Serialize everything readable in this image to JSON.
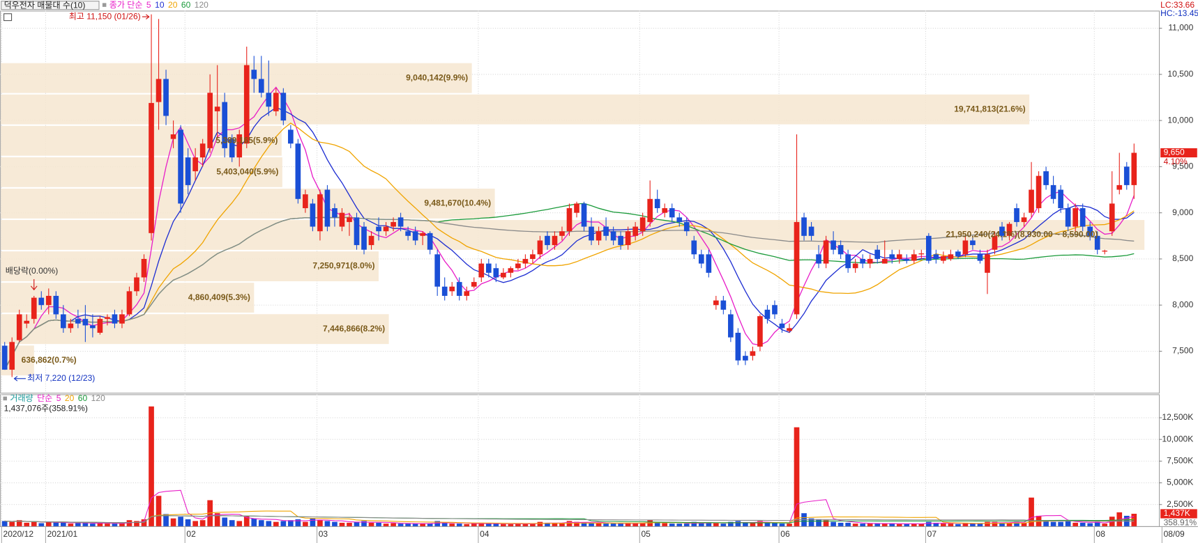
{
  "chart_data": [
    {
      "type": "candlestick",
      "title": "덕우전자 매물대 수(10)",
      "ma_title": "종가 단순",
      "ma": [
        {
          "period": 5,
          "color": "#e81ec8"
        },
        {
          "period": 10,
          "color": "#1e2ed2"
        },
        {
          "period": 20,
          "color": "#f0a400"
        },
        {
          "period": 60,
          "color": "#1a9a3a"
        },
        {
          "period": 120,
          "color": "#8a8a8a"
        }
      ],
      "categories": [
        "2020/12",
        null,
        null,
        null,
        null,
        null,
        "2021/01",
        null,
        null,
        null,
        null,
        null,
        null,
        null,
        null,
        null,
        null,
        null,
        null,
        null,
        null,
        null,
        null,
        null,
        null,
        "02",
        null,
        null,
        null,
        null,
        null,
        null,
        null,
        null,
        null,
        null,
        null,
        null,
        null,
        null,
        null,
        null,
        null,
        "03",
        null,
        null,
        null,
        null,
        null,
        null,
        null,
        null,
        null,
        null,
        null,
        null,
        null,
        null,
        null,
        null,
        null,
        null,
        null,
        null,
        null,
        "04",
        null,
        null,
        null,
        null,
        null,
        null,
        null,
        null,
        null,
        null,
        null,
        null,
        null,
        null,
        null,
        null,
        null,
        null,
        null,
        null,
        null,
        "05",
        null,
        null,
        null,
        null,
        null,
        null,
        null,
        null,
        null,
        null,
        null,
        null,
        null,
        null,
        null,
        null,
        null,
        null,
        "06",
        null,
        null,
        null,
        null,
        null,
        null,
        null,
        null,
        null,
        null,
        null,
        null,
        null,
        null,
        null,
        null,
        null,
        null,
        null,
        "07",
        null,
        null,
        null,
        null,
        null,
        null,
        null,
        null,
        null,
        null,
        null,
        null,
        null,
        null,
        null,
        null,
        null,
        null,
        null,
        null,
        null,
        null,
        "08",
        null,
        null,
        null,
        null,
        null
      ],
      "open": [
        7560,
        7300,
        7620,
        7800,
        7850,
        8080,
        8000,
        8100,
        7900,
        7750,
        7850,
        7850,
        7780,
        7700,
        7850,
        7900,
        7800,
        7900,
        8150,
        8300,
        8780,
        10200,
        10450,
        9800,
        9900,
        9600,
        9450,
        9600,
        9700,
        10100,
        10200,
        9800,
        9600,
        9750,
        10550,
        10450,
        10300,
        10100,
        10300,
        9900,
        9750,
        9050,
        9100,
        8800,
        9250,
        9050,
        8850,
        8900,
        8950,
        8850,
        8650,
        8850,
        8800,
        8850,
        8950,
        8800,
        8800,
        8750,
        8780,
        8550,
        8200,
        8150,
        8250,
        8100,
        8200,
        8300,
        8450,
        8400,
        8300,
        8350,
        8400,
        8450,
        8500,
        8550,
        8750,
        8650,
        8750,
        8800,
        9000,
        9100,
        8850,
        8700,
        8850,
        8800,
        8750,
        8650,
        8750,
        8800,
        8900,
        9150,
        9000,
        9050,
        8950,
        8900,
        8700,
        8550,
        8550,
        8000,
        8050,
        7900,
        7700,
        7450,
        7450,
        7550,
        7950,
        8000,
        7800,
        7720,
        7900,
        8950,
        8850,
        8550,
        8450,
        8700,
        8650,
        8550,
        8400,
        8500,
        8450,
        8600,
        8450,
        8550,
        8500,
        8500,
        8480,
        8550,
        8750,
        8550,
        8480,
        8500,
        8580,
        8550,
        8700,
        8550,
        8350,
        8600,
        8850,
        8750,
        9050,
        8900,
        9000,
        9050,
        9450,
        9300,
        9250,
        9050,
        8850,
        9050,
        8850,
        8750,
        8580,
        8800,
        9250,
        9500,
        9300
      ],
      "high": [
        7600,
        7650,
        7950,
        7900,
        8100,
        8150,
        8180,
        8150,
        8000,
        7850,
        7950,
        8000,
        7900,
        7880,
        7900,
        7950,
        7950,
        8200,
        8350,
        8550,
        11150,
        11100,
        10550,
        10000,
        9950,
        9700,
        9700,
        9800,
        10500,
        10600,
        10300,
        9850,
        9900,
        10800,
        10700,
        10700,
        10650,
        10350,
        10350,
        9950,
        9800,
        9250,
        9150,
        9250,
        9300,
        9100,
        9050,
        9000,
        9000,
        8900,
        8800,
        8950,
        8900,
        8950,
        9000,
        8850,
        8850,
        8800,
        8800,
        8600,
        8300,
        8250,
        8300,
        8200,
        8300,
        8500,
        8500,
        8450,
        8400,
        8420,
        8500,
        8550,
        8600,
        8750,
        8800,
        8800,
        8850,
        9100,
        9120,
        9120,
        8950,
        8850,
        8950,
        8850,
        8800,
        8850,
        8900,
        9000,
        9350,
        9250,
        9100,
        9100,
        9000,
        8950,
        8750,
        8600,
        8600,
        8100,
        8100,
        7950,
        7750,
        7500,
        7550,
        7900,
        8000,
        8050,
        7850,
        7800,
        9850,
        9000,
        8900,
        8650,
        8750,
        8800,
        8700,
        8600,
        8500,
        8550,
        8550,
        8650,
        8700,
        8600,
        8600,
        8550,
        8600,
        8600,
        8780,
        8600,
        8580,
        8600,
        8600,
        8750,
        8750,
        8600,
        8600,
        8800,
        8900,
        8900,
        9100,
        9000,
        9550,
        9450,
        9500,
        9400,
        9300,
        9100,
        9100,
        9100,
        8900,
        8800,
        8600,
        9450,
        9650,
        9550,
        9750
      ],
      "low": [
        7300,
        7220,
        7600,
        7750,
        7800,
        7950,
        7900,
        7850,
        7700,
        7700,
        7750,
        7600,
        7650,
        7680,
        7780,
        7750,
        7750,
        7880,
        8100,
        8250,
        8700,
        9900,
        9950,
        9700,
        9000,
        9200,
        9350,
        9500,
        9650,
        9800,
        9600,
        9550,
        9500,
        9700,
        10300,
        10250,
        10050,
        10050,
        9950,
        9700,
        9100,
        9000,
        8800,
        8700,
        8800,
        8850,
        8800,
        8750,
        8600,
        8550,
        8600,
        8700,
        8750,
        8800,
        8800,
        8700,
        8650,
        8650,
        8550,
        8100,
        8050,
        8100,
        8050,
        8050,
        8180,
        8250,
        8300,
        8250,
        8280,
        8300,
        8380,
        8400,
        8450,
        8500,
        8600,
        8600,
        8700,
        8750,
        8950,
        8800,
        8650,
        8650,
        8700,
        8650,
        8600,
        8600,
        8700,
        8750,
        8850,
        9000,
        8950,
        8900,
        8850,
        8750,
        8500,
        8400,
        8300,
        7950,
        7900,
        7600,
        7350,
        7350,
        7400,
        7500,
        7800,
        7850,
        7700,
        7700,
        7850,
        8700,
        8700,
        8400,
        8400,
        8550,
        8500,
        8350,
        8350,
        8400,
        8400,
        8450,
        8450,
        8450,
        8450,
        8450,
        8450,
        8500,
        8450,
        8450,
        8450,
        8480,
        8500,
        8520,
        8600,
        8450,
        8120,
        8550,
        8700,
        8700,
        8850,
        8850,
        8950,
        9000,
        9250,
        9100,
        9000,
        8800,
        8800,
        8800,
        8700,
        8550,
        8550,
        8750,
        9200,
        9250,
        9150
      ],
      "close": [
        7300,
        7600,
        7900,
        7830,
        8080,
        8000,
        8100,
        7900,
        7750,
        7800,
        7800,
        7780,
        7750,
        7850,
        7870,
        7800,
        7900,
        8150,
        8300,
        8500,
        10190,
        10450,
        10050,
        9850,
        9100,
        9300,
        9600,
        9750,
        10300,
        10150,
        9700,
        9600,
        9850,
        10600,
        10450,
        10300,
        10150,
        10300,
        10000,
        9750,
        9150,
        9200,
        8850,
        9200,
        8850,
        8950,
        9000,
        8950,
        8650,
        8600,
        8750,
        8800,
        8850,
        8900,
        8850,
        8750,
        8700,
        8780,
        8600,
        8200,
        8100,
        8200,
        8100,
        8150,
        8250,
        8450,
        8350,
        8300,
        8350,
        8400,
        8450,
        8500,
        8550,
        8700,
        8650,
        8750,
        8800,
        9050,
        9100,
        8850,
        8700,
        8800,
        8750,
        8700,
        8650,
        8800,
        8850,
        8950,
        9150,
        9050,
        9050,
        8950,
        8900,
        8800,
        8550,
        8450,
        8350,
        8050,
        7950,
        7650,
        7400,
        7400,
        7500,
        7880,
        7850,
        7900,
        7750,
        7750,
        8900,
        8750,
        8750,
        8450,
        8700,
        8600,
        8550,
        8400,
        8450,
        8450,
        8500,
        8500,
        8500,
        8500,
        8550,
        8480,
        8550,
        8560,
        8480,
        8500,
        8530,
        8550,
        8530,
        8700,
        8650,
        8480,
        8550,
        8750,
        8750,
        8880,
        8900,
        8950,
        9250,
        9400,
        9300,
        9150,
        9050,
        8850,
        9050,
        8850,
        8750,
        8600,
        8590,
        9100,
        9300,
        9300,
        9650
      ],
      "up_color": "#e8231b",
      "down_color": "#1a4fd6",
      "ylim": [
        7050,
        11190
      ],
      "yticks": [
        {
          "value": 7500,
          "label": "7,500"
        },
        {
          "value": 8000,
          "label": "8,000"
        },
        {
          "value": 8500,
          "label": "8,500"
        },
        {
          "value": 9000,
          "label": "9,000"
        },
        {
          "value": 9500,
          "label": "9,500"
        },
        {
          "value": 10000,
          "label": "10,000"
        },
        {
          "value": 10500,
          "label": "10,500"
        },
        {
          "value": 11000,
          "label": "11,000"
        }
      ],
      "grid": true,
      "volume_profile": {
        "color": "#f6e6d0",
        "bands": [
          {
            "low": 7230,
            "high": 7570,
            "volume": 636862,
            "label": "636,862(0.7%)"
          },
          {
            "low": 7570,
            "high": 7910,
            "volume": 7446866,
            "label": "7,446,866(8.2%)"
          },
          {
            "low": 7910,
            "high": 8250,
            "volume": 4860409,
            "label": "4,860,409(5.3%)"
          },
          {
            "low": 8250,
            "high": 8590,
            "volume": 7250971,
            "label": "7,250,971(8.0%)"
          },
          {
            "low": 8590,
            "high": 8930,
            "volume": 21950240,
            "label": "21,950,240(24.1%)(8,930.00 ~ 8,590.00)"
          },
          {
            "low": 8930,
            "high": 9270,
            "volume": 9481670,
            "label": "9,481,670(10.4%)"
          },
          {
            "low": 9270,
            "high": 9610,
            "volume": 5403040,
            "label": "5,403,040(5.9%)"
          },
          {
            "low": 9610,
            "high": 9950,
            "volume": 5389165,
            "label": "5,389,165(5.9%)"
          },
          {
            "low": 9950,
            "high": 10290,
            "volume": 19741813,
            "label": "19,741,813(21.6%)"
          },
          {
            "low": 10290,
            "high": 10630,
            "volume": 9040142,
            "label": "9,040,142(9.9%)"
          }
        ]
      },
      "annotations": {
        "high": "최고 11,150 (01/26)",
        "low": "최저 7,220 (12/23)",
        "dividend": "배당락(0.00%)"
      },
      "right_labels": {
        "lc": "LC:33.66",
        "hc": "HC:-13.45",
        "last_price": "9,650",
        "last_change": "4.10%"
      },
      "date_label": "08/09"
    },
    {
      "type": "bar",
      "title": "거래량",
      "ma_title": "단순",
      "ma": [
        {
          "period": 5,
          "color": "#e81ec8"
        },
        {
          "period": 20,
          "color": "#f0a400"
        },
        {
          "period": 60,
          "color": "#1a9a3a"
        },
        {
          "period": 120,
          "color": "#8a8a8a"
        }
      ],
      "info": "1,437,076주(358.91%)",
      "values": [
        600,
        500,
        700,
        400,
        500,
        350,
        500,
        450,
        400,
        300,
        350,
        450,
        300,
        350,
        300,
        300,
        350,
        700,
        600,
        800,
        13800,
        3500,
        1400,
        900,
        1100,
        800,
        600,
        700,
        3000,
        1500,
        1000,
        700,
        600,
        1200,
        900,
        700,
        600,
        500,
        600,
        700,
        800,
        500,
        900,
        700,
        600,
        500,
        400,
        400,
        500,
        600,
        400,
        400,
        300,
        350,
        300,
        300,
        300,
        300,
        350,
        600,
        400,
        300,
        300,
        250,
        300,
        400,
        300,
        300,
        250,
        250,
        300,
        300,
        300,
        500,
        400,
        350,
        350,
        600,
        500,
        450,
        400,
        350,
        300,
        300,
        300,
        400,
        350,
        400,
        700,
        500,
        350,
        300,
        300,
        300,
        500,
        400,
        400,
        350,
        300,
        500,
        600,
        400,
        350,
        600,
        400,
        350,
        300,
        300,
        11400,
        1500,
        900,
        800,
        700,
        500,
        400,
        400,
        300,
        300,
        300,
        300,
        350,
        300,
        250,
        250,
        300,
        300,
        500,
        400,
        300,
        300,
        250,
        400,
        300,
        300,
        500,
        500,
        400,
        400,
        500,
        400,
        3300,
        1200,
        700,
        500,
        500,
        600,
        400,
        400,
        350,
        500,
        300,
        1100,
        1600,
        1200,
        1437
      ],
      "ylim": [
        0,
        15200
      ],
      "yticks": [
        {
          "value": 2500,
          "label": "2,500K"
        },
        {
          "value": 5000,
          "label": "5,000K"
        },
        {
          "value": 7500,
          "label": "7,500K"
        },
        {
          "value": 10000,
          "label": "10,000K"
        },
        {
          "value": 12500,
          "label": "12,500K"
        }
      ],
      "right_labels": {
        "last_value": "1,437K",
        "last_ratio": "358.91%"
      }
    }
  ]
}
